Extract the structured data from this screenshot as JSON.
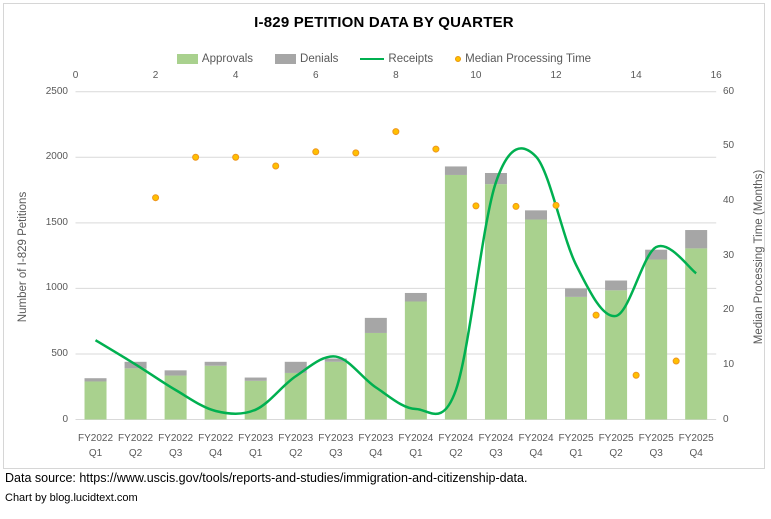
{
  "title": "I-829 PETITION DATA BY QUARTER",
  "legend": {
    "items": [
      {
        "label": "Approvals",
        "swatch": "bar-swatch",
        "color": "#A9D18E"
      },
      {
        "label": "Denials",
        "swatch": "bar-swatch",
        "color": "#A6A6A6"
      },
      {
        "label": "Receipts",
        "swatch": "line-swatch",
        "color": "#00B050"
      },
      {
        "label": "Median Processing Time",
        "swatch": "dot-swatch",
        "color": "#FFC000"
      }
    ]
  },
  "axes": {
    "left_title": "Number of I-829 Petitions",
    "right_title": "Median Processing Time (Months)",
    "left_ticks": [
      0,
      500,
      1000,
      1500,
      2000,
      2500
    ],
    "right_ticks": [
      0,
      10,
      20,
      30,
      40,
      50,
      60
    ],
    "top_ticks": [
      0,
      2,
      4,
      6,
      8,
      10,
      12,
      14,
      16
    ]
  },
  "chart_data": {
    "type": "combo: stacked bar + smoothed line (left axis) + scatter (right axis, secondary x 0-16)",
    "title": "I-829 PETITION DATA BY QUARTER",
    "categories": [
      "FY2022 Q1",
      "FY2022 Q2",
      "FY2022 Q3",
      "FY2022 Q4",
      "FY2023 Q1",
      "FY2023 Q2",
      "FY2023 Q3",
      "FY2023 Q4",
      "FY2024 Q1",
      "FY2024 Q2",
      "FY2024 Q3",
      "FY2024 Q4",
      "FY2025 Q1",
      "FY2025 Q2",
      "FY2025 Q3",
      "FY2025 Q4"
    ],
    "series": [
      {
        "name": "Approvals",
        "type": "bar",
        "stack": "petitions",
        "axis": "left",
        "color": "#A9D18E",
        "values": [
          290,
          390,
          335,
          410,
          295,
          355,
          440,
          660,
          900,
          1865,
          1795,
          1525,
          935,
          985,
          1220,
          1305
        ]
      },
      {
        "name": "Denials",
        "type": "bar",
        "stack": "petitions",
        "axis": "left",
        "color": "#A6A6A6",
        "values": [
          25,
          50,
          40,
          30,
          25,
          85,
          25,
          115,
          65,
          65,
          85,
          70,
          65,
          75,
          75,
          140
        ]
      },
      {
        "name": "Receipts",
        "type": "line",
        "axis": "left",
        "color": "#00B050",
        "smooth": true,
        "values": [
          605,
          420,
          225,
          65,
          75,
          330,
          480,
          245,
          80,
          225,
          1810,
          2005,
          1180,
          790,
          1315,
          1115
        ]
      },
      {
        "name": "Median Processing Time",
        "type": "scatter",
        "axis": "right",
        "color": "#FFC000",
        "values": [
          null,
          40.6,
          48,
          48,
          46.4,
          49,
          48.8,
          52.7,
          49.5,
          39.1,
          39,
          39.2,
          19.1,
          8.1,
          10.7,
          null
        ]
      }
    ],
    "left_axis": {
      "label": "Number of I-829 Petitions",
      "range": [
        0,
        2500
      ],
      "tick_step": 500
    },
    "right_axis": {
      "label": "Median Processing Time (Months)",
      "range": [
        0,
        60
      ],
      "tick_step": 10
    },
    "secondary_x_axis": {
      "range": [
        0,
        16
      ],
      "tick_step": 2,
      "note": "scatter points plotted at quarter index 1-16"
    },
    "legend_position": "top",
    "gridlines": "horizontal, every 500 on left axis",
    "grid_color": "#D9D9D9"
  },
  "footer": {
    "source": "Data source: https://www.uscis.gov/tools/reports-and-studies/immigration-and-citizenship-data.",
    "credit": "Chart by blog.lucidtext.com"
  }
}
